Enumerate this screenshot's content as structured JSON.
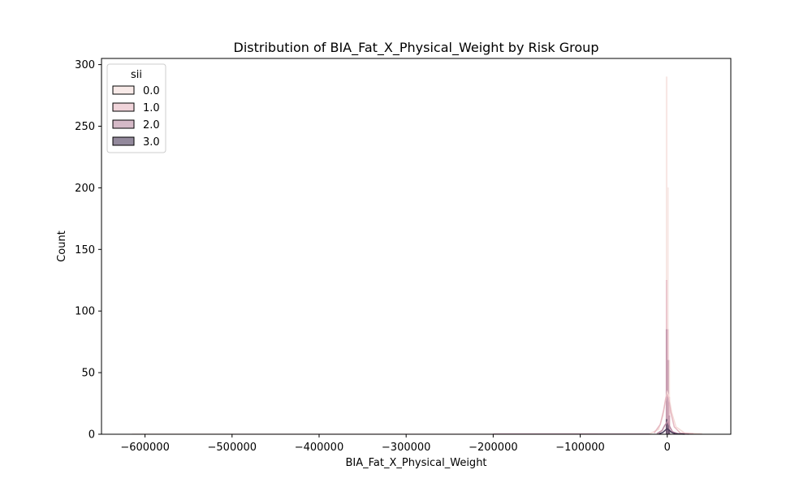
{
  "chart_data": {
    "type": "histogram",
    "title": "Distribution of BIA_Fat_X_Physical_Weight by Risk Group",
    "xlabel": "BIA_Fat_X_Physical_Weight",
    "ylabel": "Count",
    "xlim": [
      -650000,
      73000
    ],
    "ylim": [
      0,
      305
    ],
    "xticks": [
      -600000,
      -500000,
      -400000,
      -300000,
      -200000,
      -100000,
      0
    ],
    "xtick_labels": [
      "−600000",
      "−500000",
      "−400000",
      "−300000",
      "−200000",
      "−100000",
      "0"
    ],
    "yticks": [
      0,
      50,
      100,
      150,
      200,
      250,
      300
    ],
    "legend": {
      "title": "sii",
      "placement": "upper left"
    },
    "series": [
      {
        "name": "0.0",
        "color": "#f4dcd8",
        "bars": [
          {
            "x0": -1500,
            "x1": 0,
            "y": 290
          },
          {
            "x0": 0,
            "x1": 1500,
            "y": 200
          },
          {
            "x0": 1500,
            "x1": 3000,
            "y": 60
          }
        ],
        "kde": [
          [
            -20000,
            0.5
          ],
          [
            -10000,
            4
          ],
          [
            -5000,
            15
          ],
          [
            -2000,
            28
          ],
          [
            0,
            34
          ],
          [
            2000,
            30
          ],
          [
            5000,
            18
          ],
          [
            10000,
            6
          ],
          [
            20000,
            1
          ],
          [
            40000,
            0.3
          ]
        ]
      },
      {
        "name": "1.0",
        "color": "#e6b8c2",
        "bars": [
          {
            "x0": -1500,
            "x1": 0,
            "y": 125
          },
          {
            "x0": 0,
            "x1": 1500,
            "y": 85
          },
          {
            "x0": 1500,
            "x1": 3000,
            "y": 30
          }
        ],
        "kde": [
          [
            -15000,
            1
          ],
          [
            -8000,
            8
          ],
          [
            -4000,
            20
          ],
          [
            -1500,
            30
          ],
          [
            0,
            32
          ],
          [
            1500,
            29
          ],
          [
            4000,
            18
          ],
          [
            8000,
            6
          ],
          [
            15000,
            1
          ],
          [
            30000,
            0.3
          ]
        ]
      },
      {
        "name": "2.0",
        "color": "#b98aa2",
        "bars": [
          {
            "x0": -1500,
            "x1": 0,
            "y": 85
          },
          {
            "x0": 0,
            "x1": 1500,
            "y": 60
          },
          {
            "x0": 1500,
            "x1": 3000,
            "y": 15
          }
        ],
        "kde": [
          [
            -12000,
            0.5
          ],
          [
            -6000,
            3
          ],
          [
            -3000,
            7
          ],
          [
            -1000,
            9
          ],
          [
            0,
            10
          ],
          [
            1000,
            9
          ],
          [
            3000,
            6
          ],
          [
            6000,
            2
          ],
          [
            12000,
            0.5
          ],
          [
            25000,
            0.1
          ]
        ]
      },
      {
        "name": "3.0",
        "color": "#4b3a5a",
        "bars": [
          {
            "x0": -1500,
            "x1": 0,
            "y": 12
          },
          {
            "x0": 0,
            "x1": 1500,
            "y": 9
          },
          {
            "x0": 1500,
            "x1": 3000,
            "y": 3
          }
        ],
        "kde": [
          [
            -10000,
            0.2
          ],
          [
            -5000,
            1.5
          ],
          [
            -2000,
            3.5
          ],
          [
            0,
            4.5
          ],
          [
            2000,
            3.5
          ],
          [
            5000,
            1.5
          ],
          [
            10000,
            0.3
          ],
          [
            20000,
            0.1
          ]
        ]
      }
    ],
    "tails": [
      {
        "series": "0.0",
        "x0": -615000,
        "x1": -500000,
        "y": 0.6
      },
      {
        "series": "1.0",
        "x0": -500000,
        "x1": -80000,
        "y": 0.5
      },
      {
        "series": "2.0",
        "x0": -200000,
        "x1": -20000,
        "y": 0.8
      },
      {
        "series": "0.0",
        "x0": 5000,
        "x1": 40000,
        "y": 0.7
      }
    ],
    "grid": false
  }
}
